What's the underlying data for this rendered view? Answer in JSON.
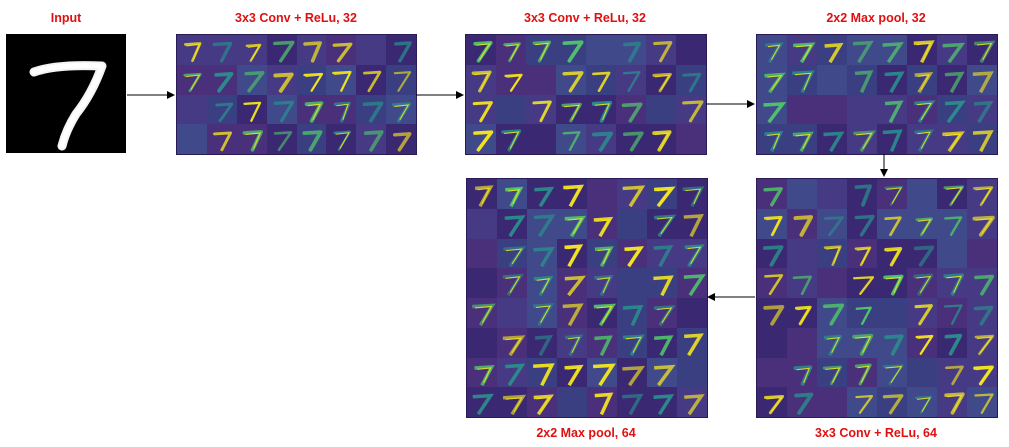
{
  "labels": {
    "input": "Input",
    "conv1": "3x3 Conv + ReLu, 32",
    "conv2": "3x3 Conv + ReLu, 32",
    "pool1": "2x2 Max pool, 32",
    "conv3": "3x3 Conv + ReLu, 64",
    "pool2": "2x2 Max pool, 64"
  },
  "input_digit": "7",
  "feature_maps": {
    "conv1": {
      "rows": 4,
      "cols": 8,
      "count": 32
    },
    "conv2": {
      "rows": 4,
      "cols": 8,
      "count": 32
    },
    "pool1": {
      "rows": 4,
      "cols": 8,
      "count": 32
    },
    "conv3": {
      "rows": 8,
      "cols": 8,
      "count": 64
    },
    "pool2": {
      "rows": 8,
      "cols": 8,
      "count": 64
    }
  },
  "colors": {
    "label": "#e01010",
    "background_dark": "#3b2872",
    "background_mid": "#404a8a",
    "teal": "#2a8c8c",
    "green": "#4fc36a",
    "yellow": "#f5e61f",
    "arrow": "#000000"
  }
}
